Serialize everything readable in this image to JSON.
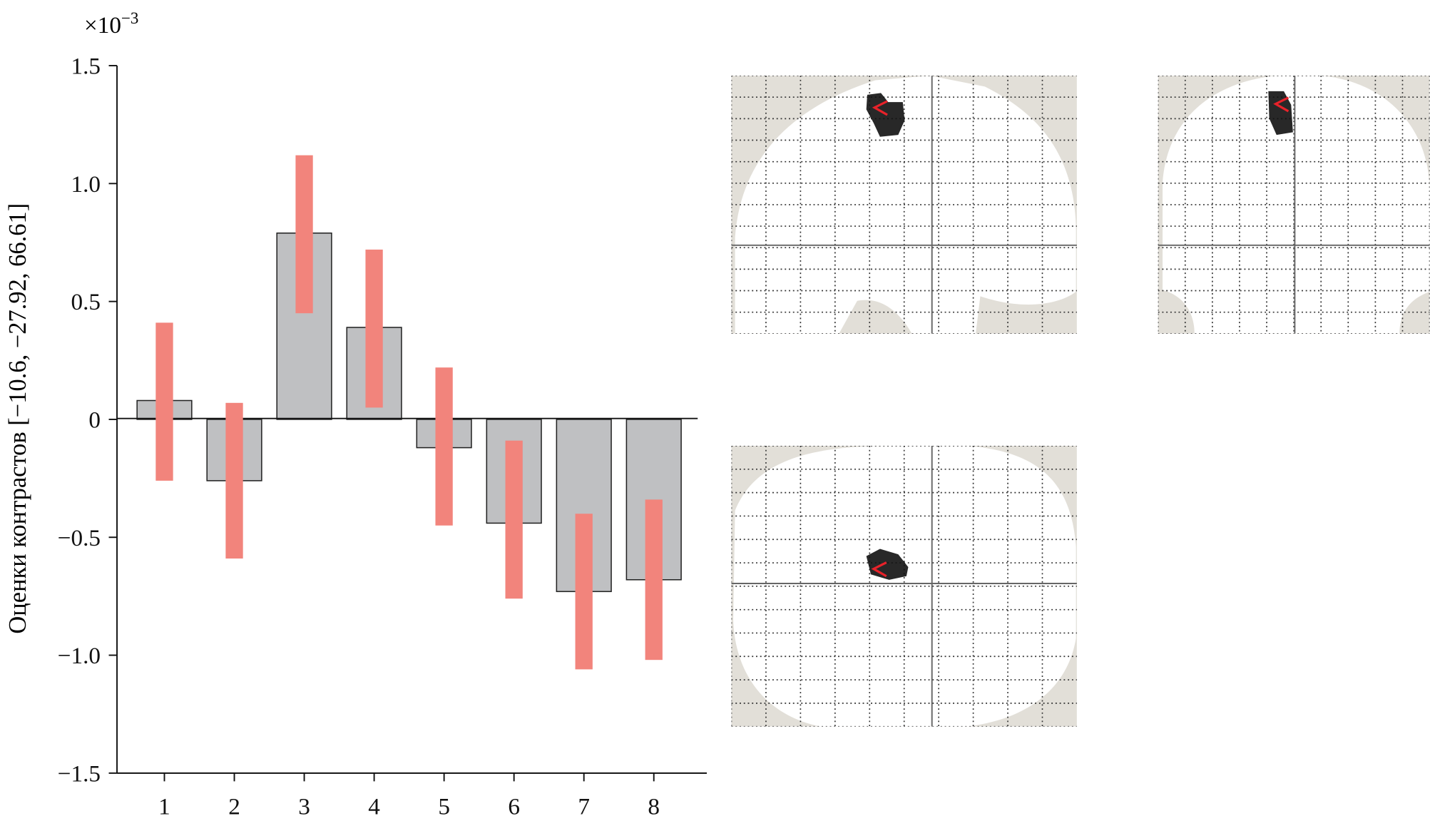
{
  "chart_data": {
    "type": "bar",
    "categories": [
      "1",
      "2",
      "3",
      "4",
      "5",
      "6",
      "7",
      "8"
    ],
    "values": [
      0.08,
      -0.26,
      0.79,
      0.39,
      -0.12,
      -0.44,
      -0.73,
      -0.68
    ],
    "intervals": [
      [
        -0.26,
        0.41
      ],
      [
        -0.59,
        0.07
      ],
      [
        0.45,
        1.12
      ],
      [
        0.05,
        0.72
      ],
      [
        -0.45,
        0.22
      ],
      [
        -0.76,
        -0.09
      ],
      [
        -1.06,
        -0.4
      ],
      [
        -1.02,
        -0.34
      ]
    ],
    "ylabel": "Оценки контрастов [−10.6, −27.92, 66.61]",
    "multiplier": "×10",
    "multiplier_exp": "−3",
    "ylim": [
      -1.5,
      1.5
    ],
    "yticks": [
      {
        "v": 1.5,
        "label": "1.5"
      },
      {
        "v": 1.0,
        "label": "1.0"
      },
      {
        "v": 0.5,
        "label": "0.5"
      },
      {
        "v": 0,
        "label": "0"
      },
      {
        "v": -0.5,
        "label": "−0.5"
      },
      {
        "v": -1.0,
        "label": "−1.0"
      },
      {
        "v": -1.5,
        "label": "−1.5"
      }
    ],
    "grid": false,
    "colors": {
      "bar": "#bfc0c2",
      "interval": "#f2847c",
      "brain_bg": "#e2dfd8",
      "marker": "#e8222a"
    }
  },
  "brain_panels": [
    "sagittal",
    "coronal",
    "axial"
  ]
}
